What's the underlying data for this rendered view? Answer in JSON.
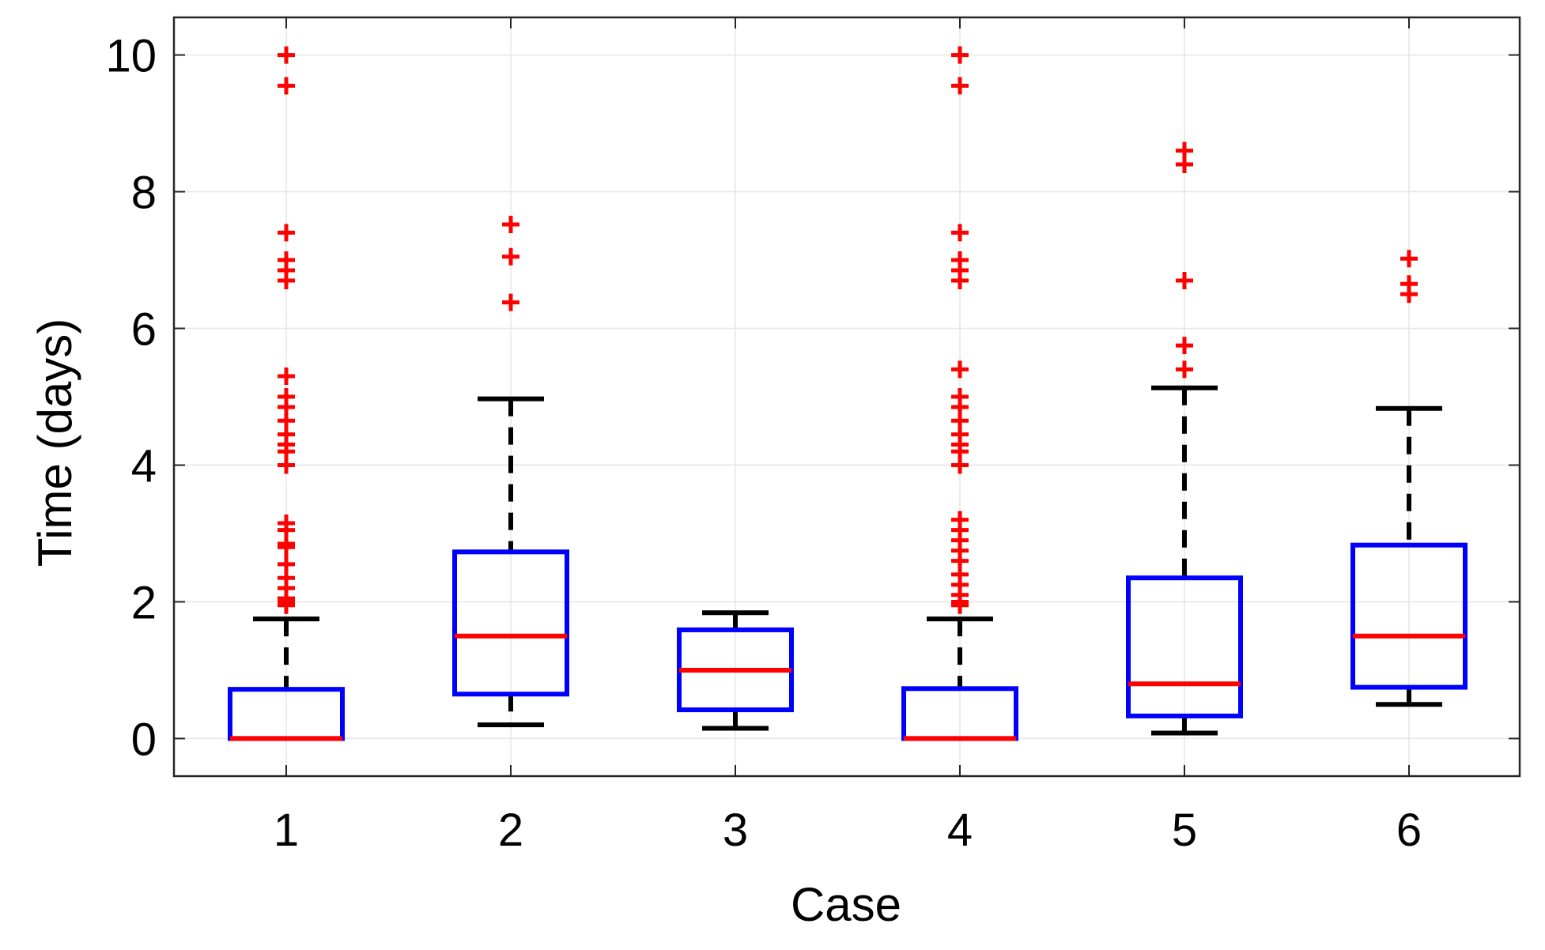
{
  "chart_data": {
    "type": "boxplot",
    "title": "",
    "xlabel": "Case",
    "ylabel": "Time (days)",
    "ylim": [
      -0.55,
      10.55
    ],
    "yticks": [
      0,
      2,
      4,
      6,
      8,
      10
    ],
    "grid": true,
    "categories": [
      "1",
      "2",
      "3",
      "4",
      "5",
      "6"
    ],
    "colors": {
      "box": "#0000ff",
      "median": "#ff0000",
      "whisker": "#000000",
      "outlier": "#ff0000",
      "grid": "#e6e6e6",
      "axes": "#262626"
    },
    "boxes": [
      {
        "category": "1",
        "q1": 0,
        "median": 0,
        "q3": 0.72,
        "whisker_low": 0,
        "whisker_high": 1.75,
        "outliers": [
          10,
          9.55,
          7.4,
          7.0,
          6.85,
          6.7,
          5.3,
          5.0,
          4.85,
          4.65,
          4.45,
          4.3,
          4.2,
          4.0,
          3.15,
          3.05,
          2.85,
          2.8,
          2.55,
          2.35,
          2.2,
          2.05,
          2.0,
          1.95
        ]
      },
      {
        "category": "2",
        "q1": 0.65,
        "median": 1.5,
        "q3": 2.73,
        "whisker_low": 0.2,
        "whisker_high": 4.97,
        "outliers": [
          7.52,
          7.05,
          6.38
        ]
      },
      {
        "category": "3",
        "q1": 0.42,
        "median": 1.0,
        "q3": 1.59,
        "whisker_low": 0.15,
        "whisker_high": 1.84,
        "outliers": []
      },
      {
        "category": "4",
        "q1": 0,
        "median": 0,
        "q3": 0.73,
        "whisker_low": 0,
        "whisker_high": 1.75,
        "outliers": [
          10,
          9.55,
          7.4,
          7.0,
          6.85,
          6.7,
          5.4,
          5.0,
          4.85,
          4.65,
          4.45,
          4.3,
          4.2,
          4.0,
          3.2,
          3.05,
          2.9,
          2.75,
          2.6,
          2.4,
          2.25,
          2.1,
          2.0,
          1.95
        ]
      },
      {
        "category": "5",
        "q1": 0.33,
        "median": 0.8,
        "q3": 2.35,
        "whisker_low": 0.08,
        "whisker_high": 5.13,
        "outliers": [
          8.6,
          8.4,
          6.7,
          5.75,
          5.4
        ]
      },
      {
        "category": "6",
        "q1": 0.75,
        "median": 1.5,
        "q3": 2.83,
        "whisker_low": 0.5,
        "whisker_high": 4.83,
        "outliers": [
          7.02,
          6.65,
          6.5
        ]
      }
    ]
  }
}
